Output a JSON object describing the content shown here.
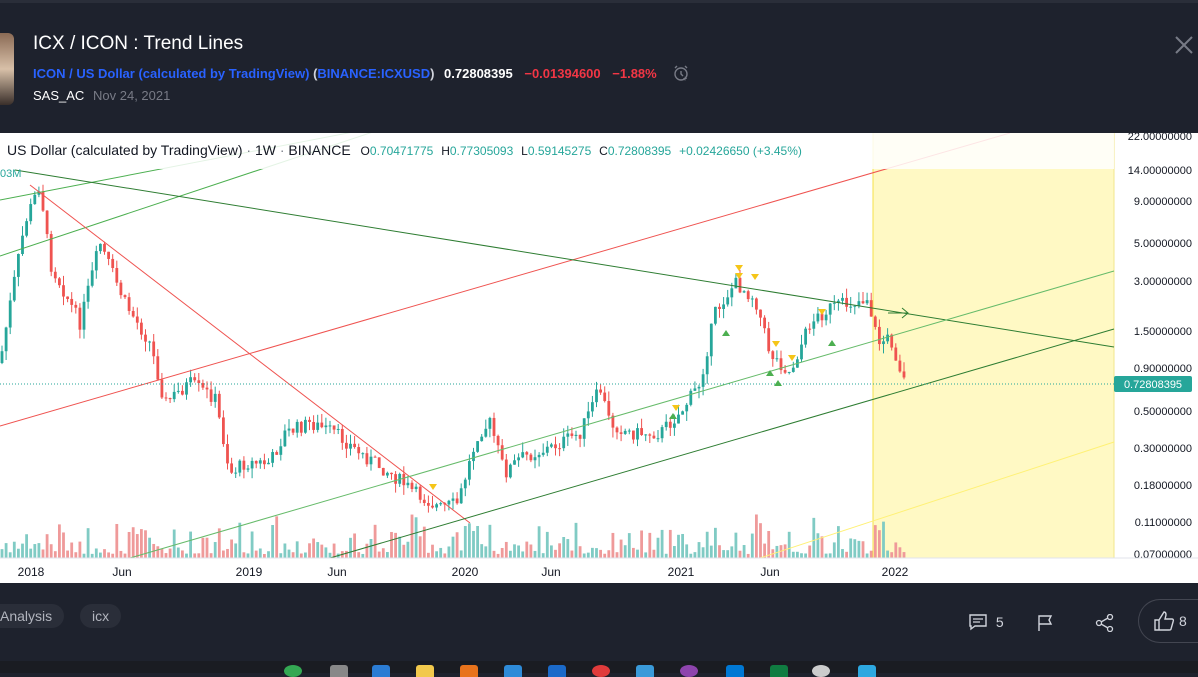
{
  "header": {
    "title": "ICX / ICON : Trend Lines",
    "symbol_name": "ICON / US Dollar (calculated by TradingView)",
    "exchange_open": "(",
    "exchange": "BINANCE:ICXUSD",
    "exchange_close": ")",
    "price": "0.72808395",
    "change": "−0.01394600",
    "change_pct": "−1.88%",
    "author": "SAS_AC",
    "date": "Nov 24, 2021",
    "icons": [
      "alarm-clock-icon",
      "close-icon"
    ]
  },
  "legend": {
    "name": "US Dollar (calculated by TradingView)",
    "interval": "1W",
    "exchange": "BINANCE",
    "open_label": "O",
    "open": "0.70471775",
    "high_label": "H",
    "high": "0.77305093",
    "low_label": "L",
    "low": "0.59145275",
    "close_label": "C",
    "close": "0.72808395",
    "change": "+0.02426650 (+3.45%)",
    "volume_fragment": "03M"
  },
  "chart_data": {
    "type": "candlestick",
    "scale": "log",
    "y_ticks": [
      "22.00000000",
      "14.00000000",
      "9.00000000",
      "5.00000000",
      "3.00000000",
      "1.50000000",
      "0.90000000",
      "0.50000000",
      "0.30000000",
      "0.18000000",
      "0.11000000",
      "0.07000000"
    ],
    "x_ticks": [
      "2018",
      "Jun",
      "2019",
      "Jun",
      "2020",
      "Jun",
      "2021",
      "Jun",
      "2022"
    ],
    "last_price_label": "0.72808395",
    "colors": {
      "up": "#26a69a",
      "down": "#ef5350",
      "volume_up": "#80cbc4",
      "volume_down": "#ef9a9a",
      "highlight": "#fff9c4",
      "marker": "#f5c518"
    }
  },
  "footer": {
    "tags": [
      "Analysis",
      "icx"
    ],
    "comments_count": "5",
    "likes_count": "8",
    "icons": [
      "comment-icon",
      "flag-icon",
      "share-icon",
      "thumbs-up-icon"
    ]
  }
}
